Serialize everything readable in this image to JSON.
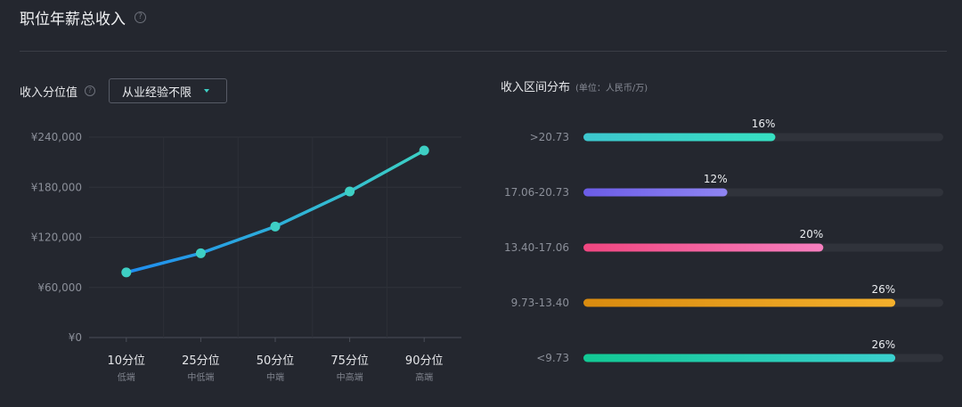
{
  "header": {
    "title": "职位年薪总收入"
  },
  "percentile_panel": {
    "label": "收入分位值",
    "dropdown_value": "从业经验不限"
  },
  "distribution_panel": {
    "label": "收入区间分布",
    "unit": "(单位：人民币/万)"
  },
  "chart_data": [
    {
      "type": "line",
      "categories": [
        "10分位",
        "25分位",
        "50分位",
        "75分位",
        "90分位"
      ],
      "sublabels": [
        "低端",
        "中低端",
        "中端",
        "中高端",
        "高端"
      ],
      "values": [
        78000,
        101000,
        133000,
        175000,
        224000
      ],
      "y_ticks": [
        0,
        60000,
        120000,
        180000,
        240000
      ],
      "y_tick_labels": [
        "¥0",
        "¥60,000",
        "¥120,000",
        "¥180,000",
        "¥240,000"
      ],
      "ylim": [
        0,
        240000
      ],
      "grid": true,
      "colors": {
        "line_start": "#1f8df0",
        "line_end": "#3cd0c4",
        "point": "#3ecfc4"
      }
    },
    {
      "type": "bar",
      "orientation": "horizontal",
      "categories": [
        ">20.73",
        "17.06-20.73",
        "13.40-17.06",
        "9.73-13.40",
        "<9.73"
      ],
      "values": [
        16,
        12,
        20,
        26,
        26
      ],
      "value_labels": [
        "16%",
        "12%",
        "20%",
        "26%",
        "26%"
      ],
      "xlim": [
        0,
        30
      ],
      "colors": [
        [
          "#3dc7cf",
          "#36e0c2"
        ],
        [
          "#6b5ce7",
          "#8f85f2"
        ],
        [
          "#f04680",
          "#f67fbf"
        ],
        [
          "#d98b0f",
          "#f4b02c"
        ],
        [
          "#12c994",
          "#3ad0cf"
        ]
      ],
      "track_color": "#30333b"
    }
  ]
}
